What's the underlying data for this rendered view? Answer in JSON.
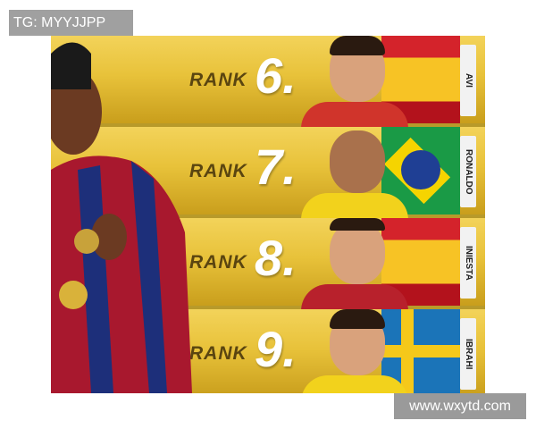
{
  "watermark_top": "TG: MYYJJPP",
  "watermark_bottom": "www.wxytd.com",
  "rows": [
    {
      "rank_label": "RANK",
      "number": "6.",
      "name": "AVI",
      "flag": "spain"
    },
    {
      "rank_label": "RANK",
      "number": "7.",
      "name": "RONALDO",
      "flag": "brazil"
    },
    {
      "rank_label": "RANK",
      "number": "8.",
      "name": "INIESTA",
      "flag": "spain"
    },
    {
      "rank_label": "RANK",
      "number": "9.",
      "name": "IBRAHI",
      "flag": "sweden"
    }
  ]
}
